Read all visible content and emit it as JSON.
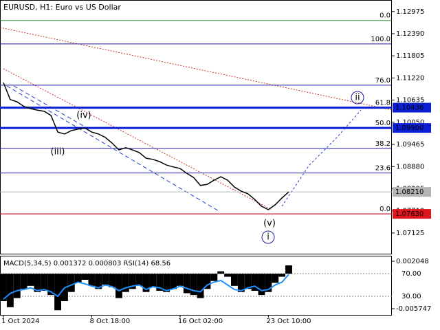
{
  "chart_data": [
    {
      "type": "line",
      "title": "EURUSD, H1:  Euro vs US Dollar",
      "color": "#000000",
      "categories": [
        "1 Oct 2024",
        null,
        null,
        null,
        null,
        null,
        null,
        null,
        null,
        null,
        null,
        null,
        null,
        "8 Oct 18:00",
        null,
        null,
        null,
        null,
        null,
        null,
        null,
        null,
        null,
        null,
        null,
        null,
        "16 Oct 02:00",
        null,
        null,
        null,
        null,
        null,
        null,
        null,
        null,
        null,
        null,
        null,
        null,
        "23 Oct 10:00",
        null,
        null,
        null
      ],
      "values": [
        1.111,
        1.1065,
        1.1059,
        1.1047,
        1.1041,
        1.1037,
        1.1034,
        1.1023,
        1.0979,
        1.0974,
        1.0983,
        1.0987,
        1.099,
        1.0979,
        1.0974,
        1.0965,
        1.095,
        1.0932,
        1.0938,
        1.0932,
        1.0925,
        1.091,
        1.0907,
        1.0901,
        1.0892,
        1.0887,
        1.0883,
        1.087,
        1.0859,
        1.0838,
        1.0841,
        1.0852,
        1.0861,
        1.0852,
        1.0834,
        1.0823,
        1.0816,
        1.0801,
        1.0783,
        1.0774,
        1.0787,
        1.0805,
        1.0821
      ],
      "ylim": [
        1.0656,
        1.1328
      ],
      "yticks": [
        {
          "value": 1.12975,
          "label": "1.12975"
        },
        {
          "value": 1.1239,
          "label": "1.12390"
        },
        {
          "value": 1.11805,
          "label": "1.11805"
        },
        {
          "value": 1.1122,
          "label": "1.11220"
        },
        {
          "value": 1.10635,
          "label": "1.10635"
        },
        {
          "value": 1.1005,
          "label": "1.10050"
        },
        {
          "value": 1.09465,
          "label": "1.09465"
        },
        {
          "value": 1.0888,
          "label": "1.08880"
        },
        {
          "value": 1.08295,
          "label": "1.08295"
        },
        {
          "value": 1.0771,
          "label": "1.07710"
        },
        {
          "value": 1.07125,
          "label": "1.07125"
        }
      ],
      "levels": [
        {
          "value": 1.1274,
          "label": "0.0",
          "color": "#2e8b2e"
        },
        {
          "value": 1.1212,
          "label": "100.0",
          "color": "#1c1c9c"
        },
        {
          "value": 1.1103,
          "label": "76.0",
          "color": "#1c1c9c"
        },
        {
          "value": 1.10436,
          "label": "61.8",
          "color": "#1c1c9c"
        },
        {
          "value": 1.099,
          "label": "50.0",
          "color": "#1c1c9c"
        },
        {
          "value": 1.0936,
          "label": "38.2",
          "color": "#1c1c9c"
        },
        {
          "value": 1.0871,
          "label": "23.6",
          "color": "#1c1c9c"
        },
        {
          "value": 1.0763,
          "label": "0.0",
          "color": "#1c1c9c"
        }
      ],
      "price_labels": [
        {
          "value": 1.10436,
          "label": "1.10436",
          "color": "#0a1fd6"
        },
        {
          "value": 1.099,
          "label": "1.09900",
          "color": "#0a1fd6"
        },
        {
          "value": 1.0821,
          "label": "1.08210",
          "color": "#b4b4b4"
        },
        {
          "value": 1.0763,
          "label": "1.07630",
          "color": "#e0141e"
        }
      ],
      "annotations": [
        "(iii)",
        "(iv)",
        "(v)",
        "i",
        "ii"
      ]
    },
    {
      "type": "macd",
      "title": "MACD(5,34,5) 0.001372 0.000803 RSI(14) 68.56",
      "color": "#000000",
      "rsi_color": "#1e90ff",
      "values": [
        -0.0045,
        -0.0055,
        -0.004,
        -0.0025,
        -0.002,
        -0.003,
        -0.0028,
        -0.0035,
        -0.006,
        -0.0045,
        -0.003,
        -0.0015,
        -0.001,
        -0.002,
        -0.0025,
        -0.0018,
        -0.0022,
        -0.004,
        -0.003,
        -0.0025,
        -0.002,
        -0.003,
        -0.0022,
        -0.0028,
        -0.003,
        -0.0025,
        -0.002,
        -0.0032,
        -0.0035,
        -0.004,
        -0.0025,
        -0.0012,
        0.0004,
        -0.0005,
        -0.002,
        -0.003,
        -0.0025,
        -0.0028,
        -0.0035,
        -0.003,
        -0.0015,
        -0.0005,
        0.001372
      ],
      "rsi": [
        25,
        35,
        40,
        42,
        45,
        40,
        42,
        38,
        30,
        45,
        50,
        55,
        52,
        48,
        45,
        50,
        47,
        40,
        45,
        48,
        50,
        42,
        47,
        45,
        40,
        43,
        48,
        44,
        40,
        38,
        50,
        55,
        58,
        50,
        42,
        40,
        45,
        48,
        40,
        42,
        50,
        55,
        68.56
      ],
      "ylim": [
        -0.00676,
        0.00295
      ],
      "yticks": [
        0.002048,
        -0.005747
      ],
      "rsi_ylim": [
        -2.7,
        101.5
      ],
      "rsi_yticks": [
        {
          "value": 70,
          "label": "70.00"
        },
        {
          "value": 30,
          "label": "30.00"
        }
      ]
    }
  ]
}
